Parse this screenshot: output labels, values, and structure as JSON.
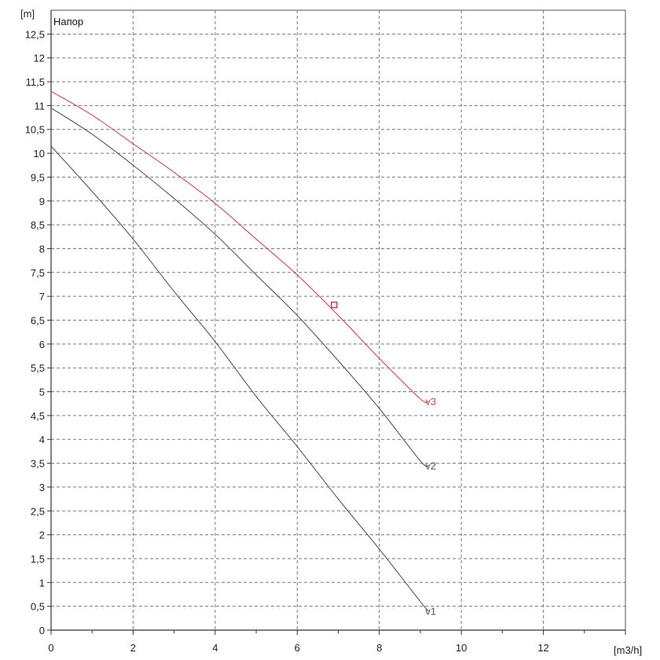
{
  "chart_data": {
    "type": "line",
    "title": "Напор",
    "xlabel": "[m3/h]",
    "ylabel": "[m]",
    "xlim": [
      0,
      14
    ],
    "ylim": [
      0,
      13
    ],
    "x_ticks": [
      0,
      2,
      4,
      6,
      8,
      10,
      12
    ],
    "y_ticks": [
      0,
      0.5,
      1,
      1.5,
      2,
      2.5,
      3,
      3.5,
      4,
      4.5,
      5,
      5.5,
      6,
      6.5,
      7,
      7.5,
      8,
      8.5,
      9,
      9.5,
      10,
      10.5,
      11,
      11.5,
      12,
      12.5
    ],
    "x_tick_labels": [
      "0",
      "2",
      "4",
      "6",
      "8",
      "10",
      "12"
    ],
    "y_tick_labels": [
      "0",
      "0,5",
      "1",
      "1,5",
      "2",
      "2,5",
      "3",
      "3,5",
      "4",
      "4,5",
      "5",
      "5,5",
      "6",
      "6,5",
      "7",
      "7,5",
      "8",
      "8,5",
      "9",
      "9,5",
      "10",
      "10,5",
      "11",
      "11,5",
      "12",
      "12,5"
    ],
    "grid": true,
    "series": [
      {
        "name": "v1",
        "color": "#555555",
        "points": [
          [
            0,
            10.15
          ],
          [
            1,
            9.2
          ],
          [
            2,
            8.2
          ],
          [
            3,
            7.1
          ],
          [
            4,
            6.05
          ],
          [
            5,
            4.9
          ],
          [
            6,
            3.85
          ],
          [
            7,
            2.75
          ],
          [
            8,
            1.7
          ],
          [
            9,
            0.6
          ],
          [
            9.2,
            0.4
          ]
        ]
      },
      {
        "name": "v2",
        "color": "#555555",
        "points": [
          [
            0,
            10.95
          ],
          [
            1,
            10.4
          ],
          [
            2,
            9.75
          ],
          [
            3,
            9.05
          ],
          [
            4,
            8.3
          ],
          [
            5,
            7.45
          ],
          [
            6,
            6.6
          ],
          [
            7,
            5.65
          ],
          [
            8,
            4.65
          ],
          [
            9,
            3.55
          ],
          [
            9.2,
            3.45
          ]
        ]
      },
      {
        "name": "v3",
        "color": "#c0504d",
        "points": [
          [
            0,
            11.3
          ],
          [
            1,
            10.8
          ],
          [
            2,
            10.2
          ],
          [
            3,
            9.6
          ],
          [
            4,
            8.95
          ],
          [
            5,
            8.2
          ],
          [
            6,
            7.45
          ],
          [
            7,
            6.6
          ],
          [
            8,
            5.7
          ],
          [
            9,
            4.85
          ],
          [
            9.2,
            4.8
          ]
        ]
      }
    ],
    "operating_point": {
      "x": 6.9,
      "y": 6.82,
      "color": "#c0504d"
    }
  }
}
